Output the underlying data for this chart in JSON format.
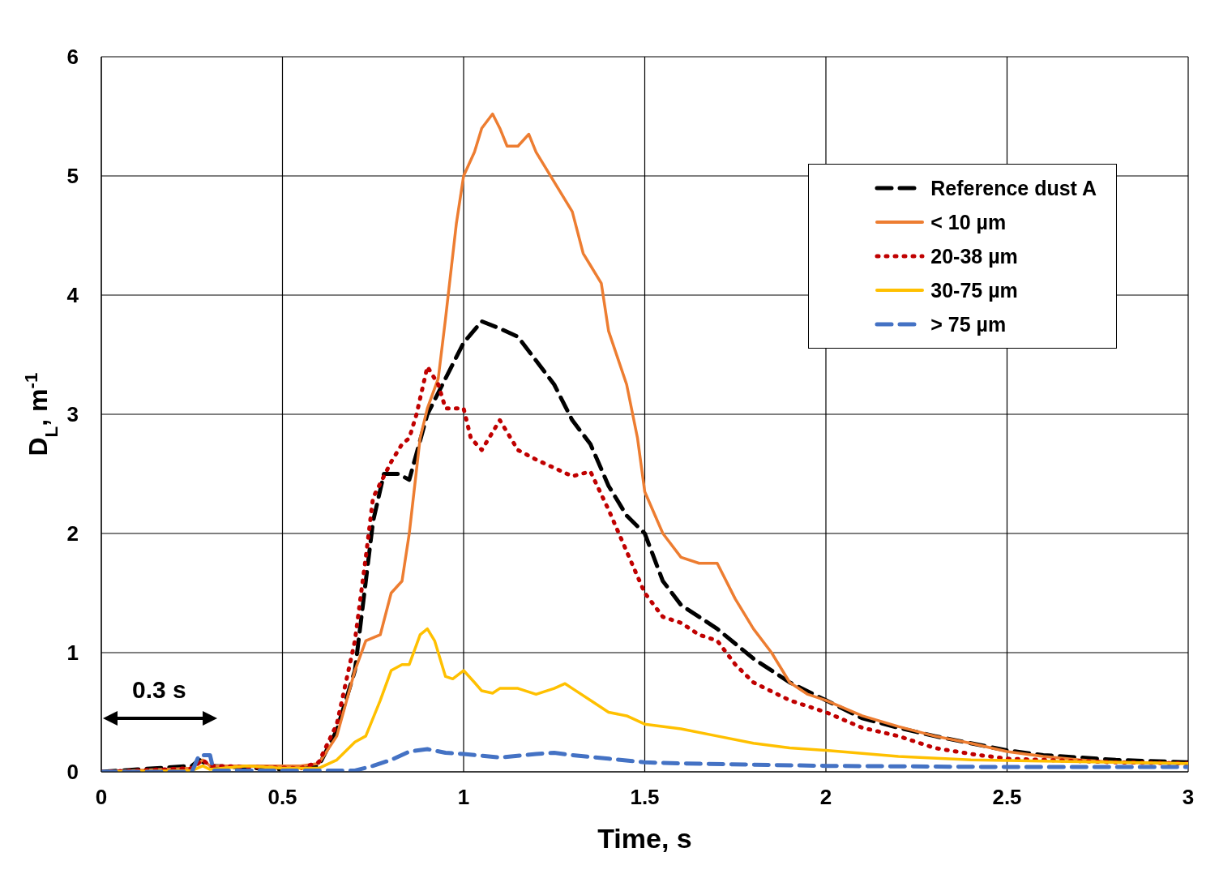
{
  "chart_data": {
    "type": "line",
    "xlabel": "Time, s",
    "ylabel": "D$_{L}$, m$^{-1}$",
    "xlim": [
      0,
      3
    ],
    "xticks": [
      0,
      0.5,
      1,
      1.5,
      2,
      2.5,
      3
    ],
    "ylim": [
      0,
      6
    ],
    "yticks": [
      0,
      1,
      2,
      3,
      4,
      5,
      6
    ],
    "grid": true,
    "legend": "top right",
    "marker": "none",
    "annotations": [
      "0.3 s"
    ],
    "series": [
      {
        "name": "Reference dust A",
        "color": "#000000",
        "line_style": "dashed",
        "x": [
          0,
          0.1,
          0.25,
          0.27,
          0.3,
          0.5,
          0.6,
          0.65,
          0.7,
          0.75,
          0.78,
          0.82,
          0.85,
          0.9,
          0.95,
          1.0,
          1.05,
          1.1,
          1.15,
          1.2,
          1.25,
          1.3,
          1.35,
          1.4,
          1.45,
          1.5,
          1.55,
          1.6,
          1.65,
          1.7,
          1.8,
          1.9,
          2.0,
          2.1,
          2.2,
          2.3,
          2.4,
          2.5,
          2.6,
          2.7,
          2.8,
          3.0
        ],
        "values": [
          0,
          0.02,
          0.05,
          0.1,
          0.05,
          0.02,
          0.05,
          0.35,
          0.85,
          2.1,
          2.5,
          2.5,
          2.45,
          3.0,
          3.3,
          3.6,
          3.78,
          3.72,
          3.65,
          3.45,
          3.25,
          2.95,
          2.75,
          2.4,
          2.15,
          2.0,
          1.6,
          1.4,
          1.3,
          1.2,
          0.95,
          0.75,
          0.6,
          0.45,
          0.37,
          0.3,
          0.24,
          0.18,
          0.14,
          0.12,
          0.1,
          0.08
        ]
      },
      {
        "name": "< 10 µm",
        "color": "#ed7d31",
        "line_style": "solid",
        "x": [
          0,
          0.25,
          0.28,
          0.3,
          0.55,
          0.6,
          0.65,
          0.7,
          0.73,
          0.77,
          0.8,
          0.83,
          0.85,
          0.88,
          0.9,
          0.93,
          0.95,
          0.98,
          1.0,
          1.03,
          1.05,
          1.08,
          1.1,
          1.12,
          1.15,
          1.18,
          1.2,
          1.25,
          1.3,
          1.33,
          1.35,
          1.38,
          1.4,
          1.45,
          1.48,
          1.5,
          1.55,
          1.6,
          1.65,
          1.7,
          1.75,
          1.8,
          1.85,
          1.9,
          1.95,
          2.0,
          2.1,
          2.2,
          2.3,
          2.4,
          2.5,
          2.6,
          2.7,
          2.8,
          3.0
        ],
        "values": [
          0,
          0.03,
          0.1,
          0.05,
          0.05,
          0.07,
          0.3,
          0.85,
          1.1,
          1.15,
          1.5,
          1.6,
          2.0,
          2.8,
          3.05,
          3.3,
          3.8,
          4.6,
          5.0,
          5.2,
          5.4,
          5.52,
          5.4,
          5.25,
          5.25,
          5.35,
          5.2,
          4.95,
          4.7,
          4.35,
          4.25,
          4.1,
          3.7,
          3.25,
          2.8,
          2.35,
          2.0,
          1.8,
          1.75,
          1.75,
          1.45,
          1.2,
          1.0,
          0.75,
          0.65,
          0.6,
          0.47,
          0.38,
          0.3,
          0.24,
          0.17,
          0.13,
          0.1,
          0.08,
          0.07
        ]
      },
      {
        "name": "20-38 µm",
        "color": "#c00000",
        "line_style": "dotted",
        "x": [
          0,
          0.25,
          0.28,
          0.3,
          0.55,
          0.6,
          0.65,
          0.7,
          0.73,
          0.75,
          0.8,
          0.83,
          0.85,
          0.87,
          0.9,
          0.93,
          0.95,
          1.0,
          1.02,
          1.05,
          1.08,
          1.1,
          1.15,
          1.2,
          1.25,
          1.3,
          1.35,
          1.4,
          1.45,
          1.5,
          1.55,
          1.6,
          1.65,
          1.7,
          1.75,
          1.8,
          1.9,
          2.0,
          2.1,
          2.2,
          2.3,
          2.4,
          2.5,
          2.6,
          2.8,
          3.0
        ],
        "values": [
          0,
          0.03,
          0.1,
          0.05,
          0.03,
          0.08,
          0.4,
          1.1,
          1.8,
          2.3,
          2.6,
          2.75,
          2.8,
          3.0,
          3.4,
          3.25,
          3.05,
          3.05,
          2.8,
          2.7,
          2.85,
          2.95,
          2.7,
          2.62,
          2.55,
          2.48,
          2.52,
          2.2,
          1.85,
          1.5,
          1.3,
          1.25,
          1.15,
          1.1,
          0.9,
          0.75,
          0.6,
          0.5,
          0.37,
          0.3,
          0.2,
          0.15,
          0.11,
          0.1,
          0.08,
          0.07
        ]
      },
      {
        "name": "30-75 µm",
        "color": "#ffc000",
        "line_style": "solid",
        "x": [
          0,
          0.25,
          0.28,
          0.3,
          0.4,
          0.5,
          0.6,
          0.65,
          0.7,
          0.73,
          0.77,
          0.8,
          0.83,
          0.85,
          0.88,
          0.9,
          0.92,
          0.95,
          0.97,
          1.0,
          1.03,
          1.05,
          1.08,
          1.1,
          1.15,
          1.2,
          1.25,
          1.28,
          1.3,
          1.35,
          1.4,
          1.45,
          1.5,
          1.6,
          1.7,
          1.8,
          1.9,
          2.0,
          2.2,
          2.4,
          2.6,
          2.8,
          3.0
        ],
        "values": [
          0,
          0.01,
          0.05,
          0.02,
          0.05,
          0.03,
          0.03,
          0.1,
          0.25,
          0.3,
          0.6,
          0.85,
          0.9,
          0.9,
          1.15,
          1.2,
          1.1,
          0.8,
          0.78,
          0.85,
          0.75,
          0.68,
          0.66,
          0.7,
          0.7,
          0.65,
          0.7,
          0.74,
          0.7,
          0.6,
          0.5,
          0.47,
          0.4,
          0.36,
          0.3,
          0.24,
          0.2,
          0.18,
          0.13,
          0.1,
          0.09,
          0.08,
          0.07
        ]
      },
      {
        "name": "> 75 µm",
        "color": "#4472c4",
        "line_style": "dashed",
        "x": [
          0,
          0.25,
          0.27,
          0.3,
          0.31,
          0.5,
          0.7,
          0.75,
          0.8,
          0.85,
          0.9,
          0.95,
          1.0,
          1.1,
          1.2,
          1.25,
          1.3,
          1.4,
          1.5,
          1.6,
          1.8,
          2.0,
          2.5,
          3.0
        ],
        "values": [
          0,
          0,
          0.14,
          0.14,
          0.01,
          0.01,
          0.01,
          0.05,
          0.1,
          0.17,
          0.19,
          0.16,
          0.15,
          0.12,
          0.15,
          0.16,
          0.14,
          0.11,
          0.08,
          0.07,
          0.06,
          0.05,
          0.04,
          0.04
        ]
      }
    ]
  }
}
